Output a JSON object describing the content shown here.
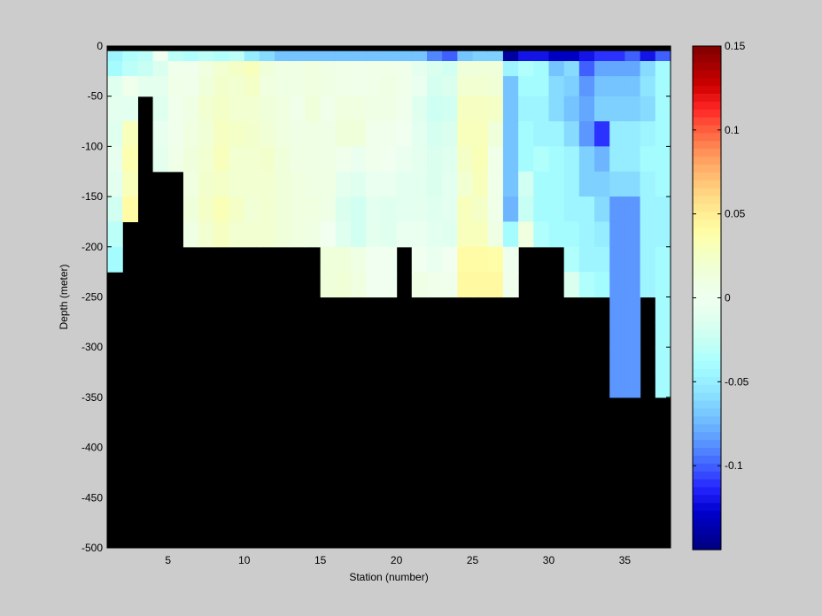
{
  "chart_data": {
    "type": "heatmap",
    "xlabel": "Station (number)",
    "ylabel": "Depth (meter)",
    "xlim": [
      1,
      38
    ],
    "ylim": [
      -500,
      0
    ],
    "xticks": [
      5,
      10,
      15,
      20,
      25,
      30,
      35
    ],
    "yticks": [
      0,
      -50,
      -100,
      -150,
      -200,
      -250,
      -300,
      -350,
      -400,
      -450,
      -500
    ],
    "colorbar": {
      "range": [
        -0.15,
        0.15
      ],
      "ticks": [
        0.15,
        0.1,
        0.05,
        0,
        -0.05,
        -0.1
      ]
    },
    "land_color": "#000000",
    "surface_layers": [
      {
        "y_top": 0,
        "y_bottom": -5
      },
      {
        "y_top": -5,
        "y_bottom": -15
      },
      {
        "y_top": -15,
        "y_bottom": -30
      }
    ],
    "stations": [
      {
        "station": 1,
        "bottom_depth": -250,
        "values": [
          null,
          -0.045,
          -0.04,
          -0.012,
          -0.008,
          -0.012,
          -0.006,
          -0.01,
          -0.02,
          -0.03,
          -0.04
        ]
      },
      {
        "station": 2,
        "bottom_depth": -200,
        "values": [
          null,
          -0.035,
          -0.03,
          0.004,
          -0.01,
          0.03,
          0.035,
          0.03,
          0.04
        ]
      },
      {
        "station": 3,
        "bottom_depth": -75,
        "values": [
          null,
          -0.03,
          -0.025,
          -0.008
        ]
      },
      {
        "station": 4,
        "bottom_depth": -150,
        "values": [
          null,
          0.0,
          -0.015,
          -0.008,
          -0.012,
          -0.006,
          -0.008
        ]
      },
      {
        "station": 5,
        "bottom_depth": -150,
        "values": [
          null,
          -0.03,
          0.004,
          0.006,
          0.004,
          0.004,
          0.006
        ]
      },
      {
        "station": 6,
        "bottom_depth": -250,
        "values": [
          null,
          -0.035,
          0.003,
          0.005,
          0.01,
          0.012,
          0.014,
          0.012,
          0.015,
          0.01
        ]
      },
      {
        "station": 7,
        "bottom_depth": -250,
        "values": [
          null,
          -0.03,
          0.012,
          0.015,
          0.02,
          0.018,
          0.02,
          0.022,
          0.025,
          0.02
        ]
      },
      {
        "station": 8,
        "bottom_depth": -250,
        "values": [
          null,
          -0.035,
          0.02,
          0.022,
          0.025,
          0.028,
          0.03,
          0.025,
          0.032,
          0.028
        ]
      },
      {
        "station": 9,
        "bottom_depth": -250,
        "values": [
          null,
          -0.03,
          0.025,
          0.02,
          0.02,
          0.025,
          0.02,
          0.02,
          0.025,
          0.02
        ]
      },
      {
        "station": 10,
        "bottom_depth": -250,
        "values": [
          null,
          -0.05,
          0.03,
          0.025,
          0.02,
          0.022,
          0.02,
          0.02,
          0.018,
          0.02
        ]
      },
      {
        "station": 11,
        "bottom_depth": -250,
        "values": [
          null,
          -0.06,
          0.015,
          0.012,
          0.015,
          0.018,
          0.022,
          0.02,
          0.02,
          0.02
        ]
      },
      {
        "station": 12,
        "bottom_depth": -250,
        "values": [
          null,
          -0.07,
          0.01,
          0.01,
          0.012,
          0.012,
          0.015,
          0.015,
          0.015,
          0.015
        ]
      },
      {
        "station": 13,
        "bottom_depth": -250,
        "values": [
          null,
          -0.07,
          0.01,
          0.01,
          0.005,
          0.008,
          0.01,
          0.012,
          0.012,
          0.012
        ]
      },
      {
        "station": 14,
        "bottom_depth": -250,
        "values": [
          null,
          -0.07,
          0.012,
          0.012,
          0.015,
          0.01,
          0.01,
          0.01,
          0.012,
          0.01
        ]
      },
      {
        "station": 15,
        "bottom_depth": -300,
        "values": [
          null,
          -0.07,
          0.008,
          0.01,
          0.005,
          0.008,
          0.008,
          0.01,
          0.008,
          0.0,
          0.015,
          0.015
        ]
      },
      {
        "station": 16,
        "bottom_depth": -300,
        "values": [
          null,
          -0.07,
          0.006,
          0.006,
          0.012,
          0.015,
          0.003,
          -0.008,
          -0.015,
          -0.012,
          0.015,
          0.018
        ]
      },
      {
        "station": 17,
        "bottom_depth": -300,
        "values": [
          null,
          -0.07,
          0.005,
          0.005,
          0.012,
          0.015,
          -0.005,
          -0.012,
          -0.02,
          -0.02,
          0.01,
          0.012
        ]
      },
      {
        "station": 18,
        "bottom_depth": -300,
        "values": [
          null,
          -0.07,
          0.006,
          0.006,
          0.008,
          0.004,
          0.003,
          -0.005,
          -0.01,
          -0.008,
          0.0,
          0.0
        ]
      },
      {
        "station": 19,
        "bottom_depth": -300,
        "values": [
          null,
          -0.07,
          0.006,
          0.01,
          0.008,
          0.003,
          0.0,
          -0.005,
          -0.012,
          -0.012,
          0.0,
          0.0
        ]
      },
      {
        "station": 20,
        "bottom_depth": -250,
        "values": [
          null,
          -0.07,
          0.005,
          0.005,
          0.003,
          0.0,
          -0.005,
          -0.01,
          -0.01,
          -0.005
        ]
      },
      {
        "station": 21,
        "bottom_depth": -300,
        "values": [
          null,
          -0.07,
          -0.008,
          -0.005,
          -0.012,
          -0.01,
          -0.008,
          -0.01,
          -0.008,
          -0.005,
          0.0,
          0.008
        ]
      },
      {
        "station": 22,
        "bottom_depth": -300,
        "values": [
          null,
          -0.09,
          -0.015,
          -0.018,
          -0.022,
          -0.018,
          -0.015,
          -0.015,
          -0.012,
          -0.01,
          -0.005,
          0.005
        ]
      },
      {
        "station": 23,
        "bottom_depth": -300,
        "values": [
          null,
          -0.1,
          -0.02,
          -0.015,
          -0.02,
          -0.015,
          -0.012,
          -0.01,
          -0.01,
          -0.012,
          0.0,
          0.003
        ]
      },
      {
        "station": 24,
        "bottom_depth": -300,
        "values": [
          null,
          -0.07,
          0.015,
          0.02,
          0.028,
          0.03,
          0.025,
          0.02,
          0.03,
          0.03,
          0.04,
          0.042
        ]
      },
      {
        "station": 25,
        "bottom_depth": -300,
        "values": [
          null,
          -0.065,
          0.015,
          0.02,
          0.028,
          0.03,
          0.032,
          0.03,
          0.025,
          0.03,
          0.04,
          0.042
        ]
      },
      {
        "station": 26,
        "bottom_depth": -300,
        "values": [
          null,
          -0.065,
          0.015,
          0.018,
          0.025,
          0.015,
          0.006,
          0.006,
          0.006,
          0.01,
          0.038,
          0.042
        ]
      },
      {
        "station": 27,
        "bottom_depth": -300,
        "values": [
          null,
          -0.14,
          -0.045,
          -0.07,
          -0.07,
          -0.07,
          -0.07,
          -0.07,
          -0.075,
          -0.04,
          0.002,
          0.003
        ]
      },
      {
        "station": 28,
        "bottom_depth": -250,
        "values": [
          null,
          -0.12,
          -0.035,
          -0.04,
          -0.045,
          -0.04,
          -0.04,
          -0.02,
          -0.025,
          0.012
        ]
      },
      {
        "station": 29,
        "bottom_depth": -250,
        "values": [
          null,
          -0.12,
          -0.04,
          -0.04,
          -0.045,
          -0.045,
          -0.035,
          -0.04,
          -0.04,
          -0.035
        ]
      },
      {
        "station": 30,
        "bottom_depth": -250,
        "values": [
          null,
          -0.13,
          -0.07,
          -0.06,
          -0.06,
          -0.045,
          -0.04,
          -0.04,
          -0.04,
          -0.04
        ]
      },
      {
        "station": 31,
        "bottom_depth": -300,
        "values": [
          null,
          -0.13,
          -0.06,
          -0.065,
          -0.07,
          -0.06,
          -0.045,
          -0.045,
          -0.045,
          -0.04,
          -0.035,
          -0.015
        ]
      },
      {
        "station": 32,
        "bottom_depth": -300,
        "values": [
          null,
          -0.12,
          -0.1,
          -0.085,
          -0.08,
          -0.085,
          -0.065,
          -0.065,
          -0.045,
          -0.045,
          -0.045,
          -0.035
        ]
      },
      {
        "station": 33,
        "bottom_depth": -300,
        "values": [
          null,
          -0.11,
          -0.08,
          -0.07,
          -0.065,
          -0.11,
          -0.075,
          -0.065,
          -0.06,
          -0.05,
          -0.045,
          -0.04
        ]
      },
      {
        "station": 34,
        "bottom_depth": -400,
        "values": [
          null,
          -0.11,
          -0.08,
          -0.07,
          -0.065,
          -0.05,
          -0.05,
          -0.06,
          -0.085,
          -0.085,
          -0.085,
          -0.085,
          -0.085,
          -0.085,
          -0.085,
          -0.085
        ]
      },
      {
        "station": 35,
        "bottom_depth": -400,
        "values": [
          null,
          -0.1,
          -0.08,
          -0.07,
          -0.065,
          -0.05,
          -0.05,
          -0.06,
          -0.085,
          -0.085,
          -0.085,
          -0.085,
          -0.085,
          -0.085,
          -0.085,
          -0.085
        ]
      },
      {
        "station": 36,
        "bottom_depth": -300,
        "values": [
          null,
          -0.12,
          -0.06,
          -0.055,
          -0.06,
          -0.045,
          -0.04,
          -0.045,
          -0.045,
          -0.045,
          -0.045,
          -0.045
        ]
      },
      {
        "station": 37,
        "bottom_depth": -400,
        "values": [
          null,
          -0.1,
          -0.04,
          -0.04,
          -0.04,
          -0.04,
          -0.04,
          -0.04,
          -0.045,
          -0.045,
          -0.04,
          -0.04,
          -0.04,
          -0.04,
          -0.04,
          -0.04
        ]
      }
    ]
  }
}
